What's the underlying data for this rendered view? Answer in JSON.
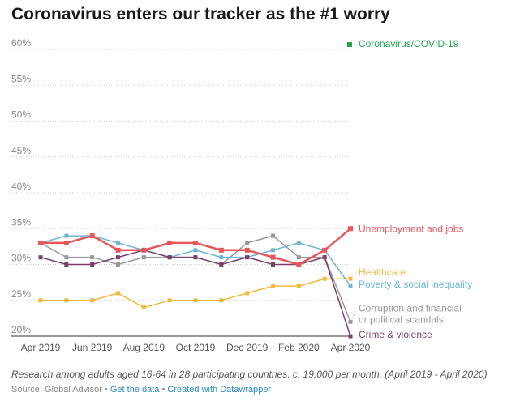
{
  "title": "Coronavirus enters our tracker as the #1 worry",
  "notes": "Research among adults aged 16-64 in 28 participating countries. c. 19,000 per month. (April 2019 - April 2020)",
  "source": {
    "label": "Source: Global Advisor",
    "links": [
      "Get the data",
      "Created with Datawrapper"
    ],
    "separator": "•",
    "link_color": "#2f8bc4"
  },
  "chart_data": {
    "type": "line",
    "title": "Coronavirus enters our tracker as the #1 worry",
    "xlabel": "",
    "ylabel": "",
    "x": [
      "Apr 2019",
      "May 2019",
      "Jun 2019",
      "Jul 2019",
      "Aug 2019",
      "Sep 2019",
      "Oct 2019",
      "Nov 2019",
      "Dec 2019",
      "Jan 2020",
      "Feb 2020",
      "Mar 2020",
      "Apr 2020"
    ],
    "x_tick_labels": [
      "Apr 2019",
      "Jun 2019",
      "Aug 2019",
      "Oct 2019",
      "Dec 2019",
      "Feb 2020",
      "Apr 2020"
    ],
    "ylim": [
      20,
      60
    ],
    "y_ticks": [
      20,
      25,
      30,
      35,
      40,
      45,
      50,
      55,
      60
    ],
    "y_tick_labels": [
      "20%",
      "25%",
      "30%",
      "35%",
      "40%",
      "45%",
      "50%",
      "55%",
      "60%"
    ],
    "grid": "horizontal dotted",
    "legend": "direct labels at right end of lines",
    "legend_entries": [
      {
        "name": "Coronavirus/COVID-19",
        "color": "#1fa64f"
      }
    ],
    "series": [
      {
        "name": "Unemployment and jobs",
        "color": "#e8555a",
        "bold": true,
        "values": [
          33,
          33,
          34,
          32,
          32,
          33,
          33,
          32,
          32,
          31,
          30,
          32,
          35
        ],
        "label_lines": [
          "Unemployment and jobs"
        ]
      },
      {
        "name": "Healthcare",
        "color": "#f2b93b",
        "values": [
          25,
          25,
          25,
          26,
          24,
          25,
          25,
          25,
          26,
          27,
          27,
          28,
          28
        ],
        "label_lines": [
          "Healthcare"
        ]
      },
      {
        "name": "Poverty & social inequality",
        "color": "#6cb6d6",
        "values": [
          33,
          34,
          34,
          33,
          32,
          31,
          32,
          31,
          31,
          32,
          33,
          32,
          27
        ],
        "label_lines": [
          "Poverty & social inequality"
        ]
      },
      {
        "name": "Corruption and financial or political scandals",
        "color": "#999999",
        "values": [
          33,
          31,
          31,
          30,
          31,
          31,
          31,
          30,
          33,
          34,
          31,
          31,
          22
        ],
        "label_lines": [
          "Corruption and financial",
          "or political scandals"
        ]
      },
      {
        "name": "Crime & violence",
        "color": "#7b3f6e",
        "values": [
          31,
          30,
          30,
          31,
          32,
          31,
          31,
          30,
          31,
          30,
          30,
          31,
          20
        ],
        "label_lines": [
          "Crime & violence"
        ]
      }
    ]
  }
}
